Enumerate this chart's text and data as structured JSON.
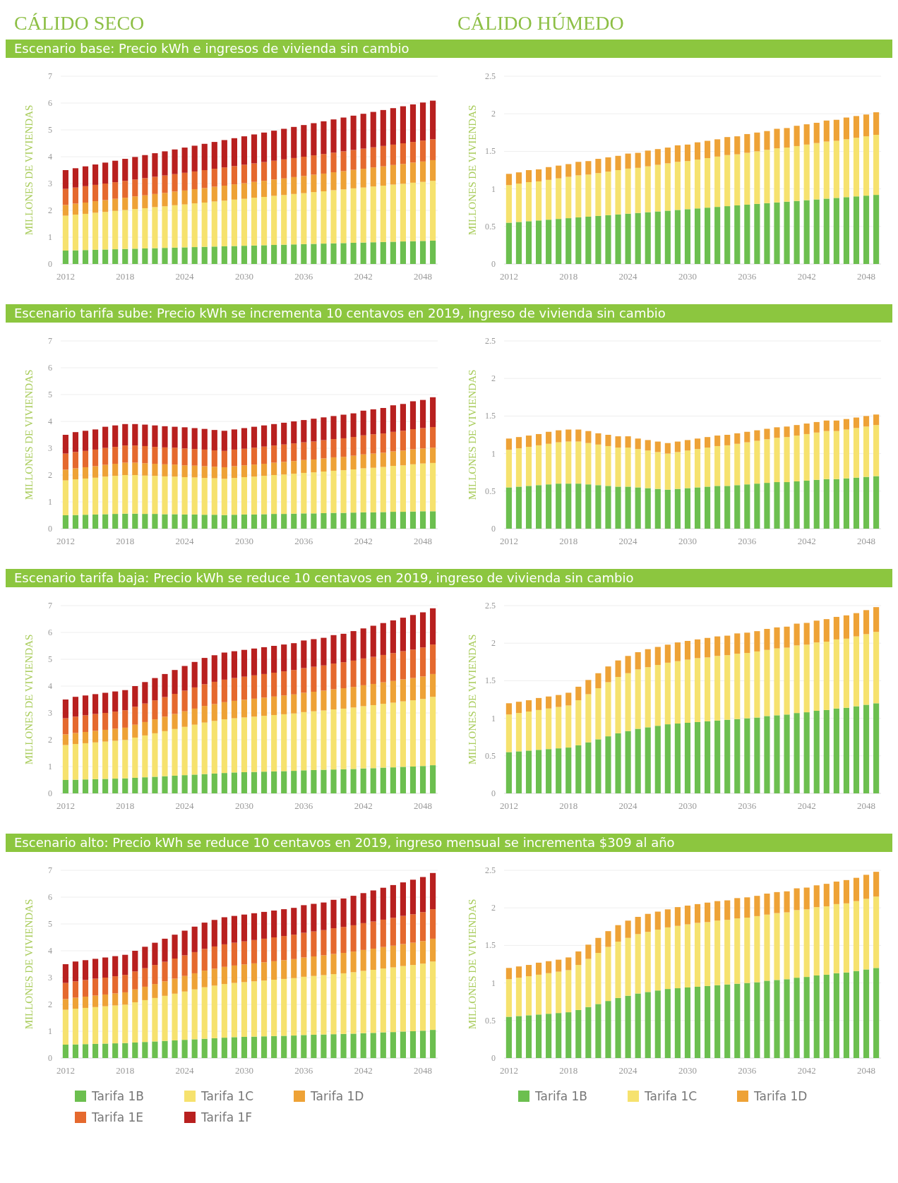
{
  "chart_data": [
    {
      "type": "bar",
      "stacked": true,
      "title": "CÁLIDO SECO",
      "subtitle": "Escenario base: Precio kWh e ingresos de vivienda sin cambio",
      "ylabel": "MILLONES DE VIVIENDAS",
      "categories": [
        "2012",
        null,
        null,
        null,
        null,
        null,
        "2018",
        null,
        null,
        null,
        null,
        null,
        "2024",
        null,
        null,
        null,
        null,
        null,
        "2030",
        null,
        null,
        null,
        null,
        null,
        "2036",
        null,
        null,
        null,
        null,
        null,
        "2042",
        null,
        null,
        null,
        null,
        null,
        "2048",
        null
      ],
      "ylim": [
        0,
        7
      ],
      "yticks": [
        0,
        1,
        2,
        3,
        4,
        5,
        6,
        7
      ],
      "grid": "y",
      "legend": false,
      "series": [
        {
          "color": "#6cbf4f",
          "values": [
            0.5,
            0.51,
            0.52,
            0.53,
            0.54,
            0.55,
            0.56,
            0.57,
            0.58,
            0.59,
            0.6,
            0.61,
            0.62,
            0.63,
            0.64,
            0.65,
            0.66,
            0.67,
            0.68,
            0.69,
            0.7,
            0.71,
            0.72,
            0.73,
            0.74,
            0.75,
            0.76,
            0.77,
            0.78,
            0.79,
            0.8,
            0.81,
            0.82,
            0.83,
            0.84,
            0.85,
            0.86,
            0.87
          ]
        },
        {
          "color": "#f6e26e",
          "values": [
            1.3,
            1.33,
            1.35,
            1.38,
            1.4,
            1.43,
            1.45,
            1.48,
            1.5,
            1.53,
            1.55,
            1.58,
            1.6,
            1.63,
            1.65,
            1.68,
            1.7,
            1.73,
            1.75,
            1.78,
            1.8,
            1.83,
            1.85,
            1.88,
            1.9,
            1.93,
            1.95,
            1.98,
            2,
            2.03,
            2.05,
            2.08,
            2.1,
            2.13,
            2.15,
            2.18,
            2.2,
            2.23
          ]
        },
        {
          "color": "#eea236",
          "values": [
            0.4,
            0.41,
            0.42,
            0.43,
            0.44,
            0.45,
            0.46,
            0.47,
            0.48,
            0.49,
            0.5,
            0.51,
            0.52,
            0.53,
            0.54,
            0.55,
            0.56,
            0.57,
            0.58,
            0.59,
            0.6,
            0.61,
            0.62,
            0.63,
            0.64,
            0.65,
            0.66,
            0.67,
            0.68,
            0.69,
            0.7,
            0.71,
            0.72,
            0.73,
            0.74,
            0.75,
            0.76,
            0.77
          ]
        },
        {
          "color": "#e5692e",
          "values": [
            0.6,
            0.6,
            0.61,
            0.61,
            0.62,
            0.62,
            0.63,
            0.63,
            0.64,
            0.64,
            0.65,
            0.65,
            0.66,
            0.66,
            0.67,
            0.67,
            0.68,
            0.68,
            0.69,
            0.69,
            0.7,
            0.7,
            0.71,
            0.71,
            0.72,
            0.72,
            0.73,
            0.73,
            0.74,
            0.74,
            0.75,
            0.75,
            0.76,
            0.76,
            0.77,
            0.77,
            0.78,
            0.78
          ]
        },
        {
          "color": "#b8201f",
          "values": [
            0.7,
            0.72,
            0.74,
            0.76,
            0.78,
            0.8,
            0.82,
            0.84,
            0.86,
            0.88,
            0.9,
            0.92,
            0.94,
            0.96,
            0.98,
            1,
            1.02,
            1.04,
            1.06,
            1.08,
            1.1,
            1.12,
            1.14,
            1.16,
            1.18,
            1.2,
            1.22,
            1.24,
            1.26,
            1.28,
            1.3,
            1.32,
            1.34,
            1.36,
            1.38,
            1.4,
            1.42,
            1.44
          ]
        }
      ]
    },
    {
      "type": "bar",
      "stacked": true,
      "title": "CÁLIDO HÚMEDO",
      "ylabel": "MILLONES DE VIVIENDAS",
      "categories": [
        "2012",
        null,
        null,
        null,
        null,
        null,
        "2018",
        null,
        null,
        null,
        null,
        null,
        "2024",
        null,
        null,
        null,
        null,
        null,
        "2030",
        null,
        null,
        null,
        null,
        null,
        "2036",
        null,
        null,
        null,
        null,
        null,
        "2042",
        null,
        null,
        null,
        null,
        null,
        "2048",
        null
      ],
      "ylim": [
        0,
        2.5
      ],
      "yticks": [
        0,
        0.5,
        1,
        1.5,
        2,
        2.5
      ],
      "grid": "y",
      "legend": false,
      "series": [
        {
          "color": "#6cbf4f",
          "values": [
            0.55,
            0.56,
            0.57,
            0.58,
            0.59,
            0.6,
            0.61,
            0.62,
            0.63,
            0.64,
            0.65,
            0.66,
            0.67,
            0.68,
            0.69,
            0.7,
            0.71,
            0.72,
            0.73,
            0.74,
            0.75,
            0.76,
            0.77,
            0.78,
            0.79,
            0.8,
            0.81,
            0.82,
            0.83,
            0.84,
            0.85,
            0.86,
            0.87,
            0.88,
            0.89,
            0.9,
            0.91,
            0.92
          ]
        },
        {
          "color": "#f6e26e",
          "values": [
            0.5,
            0.51,
            0.52,
            0.52,
            0.53,
            0.54,
            0.55,
            0.56,
            0.56,
            0.57,
            0.58,
            0.59,
            0.6,
            0.6,
            0.61,
            0.62,
            0.63,
            0.64,
            0.64,
            0.65,
            0.66,
            0.67,
            0.68,
            0.68,
            0.69,
            0.7,
            0.71,
            0.72,
            0.72,
            0.73,
            0.74,
            0.75,
            0.76,
            0.76,
            0.77,
            0.78,
            0.79,
            0.8
          ]
        },
        {
          "color": "#eea236",
          "values": [
            0.15,
            0.15,
            0.16,
            0.16,
            0.17,
            0.17,
            0.17,
            0.18,
            0.18,
            0.19,
            0.19,
            0.19,
            0.2,
            0.2,
            0.21,
            0.21,
            0.21,
            0.22,
            0.22,
            0.23,
            0.23,
            0.23,
            0.24,
            0.24,
            0.25,
            0.25,
            0.25,
            0.26,
            0.26,
            0.27,
            0.27,
            0.27,
            0.28,
            0.28,
            0.29,
            0.29,
            0.29,
            0.3
          ]
        }
      ]
    },
    {
      "type": "bar",
      "stacked": true,
      "subtitle": "Escenario tarifa sube: Precio kWh se incrementa 10 centavos en 2019, ingreso de vivienda sin cambio",
      "ylabel": "MILLONES DE VIVIENDAS",
      "categories": [
        "2012",
        null,
        null,
        null,
        null,
        null,
        "2018",
        null,
        null,
        null,
        null,
        null,
        "2024",
        null,
        null,
        null,
        null,
        null,
        "2030",
        null,
        null,
        null,
        null,
        null,
        "2036",
        null,
        null,
        null,
        null,
        null,
        "2042",
        null,
        null,
        null,
        null,
        null,
        "2048",
        null
      ],
      "ylim": [
        0,
        7
      ],
      "yticks": [
        0,
        1,
        2,
        3,
        4,
        5,
        6,
        7
      ],
      "grid": "y",
      "legend": false,
      "series": [
        {
          "color": "#6cbf4f",
          "values": [
            0.5,
            0.51,
            0.52,
            0.53,
            0.54,
            0.55,
            0.56,
            0.56,
            0.55,
            0.55,
            0.54,
            0.54,
            0.53,
            0.53,
            0.52,
            0.52,
            0.51,
            0.52,
            0.53,
            0.53,
            0.54,
            0.55,
            0.55,
            0.56,
            0.57,
            0.57,
            0.58,
            0.59,
            0.59,
            0.6,
            0.61,
            0.61,
            0.62,
            0.63,
            0.63,
            0.64,
            0.65,
            0.65
          ]
        },
        {
          "color": "#f6e26e",
          "values": [
            1.3,
            1.33,
            1.35,
            1.37,
            1.4,
            1.42,
            1.44,
            1.44,
            1.43,
            1.42,
            1.41,
            1.4,
            1.39,
            1.38,
            1.37,
            1.36,
            1.35,
            1.37,
            1.39,
            1.41,
            1.43,
            1.45,
            1.47,
            1.49,
            1.51,
            1.53,
            1.55,
            1.57,
            1.59,
            1.61,
            1.64,
            1.66,
            1.68,
            1.71,
            1.73,
            1.76,
            1.78,
            1.8
          ]
        },
        {
          "color": "#eea236",
          "values": [
            0.4,
            0.41,
            0.42,
            0.43,
            0.44,
            0.45,
            0.46,
            0.46,
            0.46,
            0.45,
            0.45,
            0.45,
            0.44,
            0.44,
            0.44,
            0.43,
            0.43,
            0.44,
            0.44,
            0.45,
            0.45,
            0.46,
            0.47,
            0.47,
            0.48,
            0.48,
            0.49,
            0.5,
            0.5,
            0.51,
            0.52,
            0.53,
            0.53,
            0.54,
            0.55,
            0.56,
            0.56,
            0.57
          ]
        },
        {
          "color": "#e5692e",
          "values": [
            0.6,
            0.61,
            0.61,
            0.62,
            0.63,
            0.63,
            0.64,
            0.64,
            0.64,
            0.63,
            0.63,
            0.63,
            0.63,
            0.62,
            0.62,
            0.61,
            0.61,
            0.62,
            0.62,
            0.63,
            0.64,
            0.64,
            0.65,
            0.66,
            0.66,
            0.67,
            0.68,
            0.68,
            0.69,
            0.7,
            0.71,
            0.72,
            0.72,
            0.73,
            0.74,
            0.75,
            0.76,
            0.77
          ]
        },
        {
          "color": "#b8201f",
          "values": [
            0.7,
            0.74,
            0.75,
            0.75,
            0.79,
            0.8,
            0.8,
            0.8,
            0.8,
            0.8,
            0.79,
            0.78,
            0.79,
            0.78,
            0.77,
            0.76,
            0.75,
            0.75,
            0.77,
            0.78,
            0.79,
            0.8,
            0.81,
            0.82,
            0.83,
            0.85,
            0.85,
            0.86,
            0.88,
            0.88,
            0.92,
            0.93,
            0.95,
            0.99,
            1,
            1.04,
            1.05,
            1.11
          ]
        }
      ]
    },
    {
      "type": "bar",
      "stacked": true,
      "ylabel": "MILLONES DE VIVIENDAS",
      "categories": [
        "2012",
        null,
        null,
        null,
        null,
        null,
        "2018",
        null,
        null,
        null,
        null,
        null,
        "2024",
        null,
        null,
        null,
        null,
        null,
        "2030",
        null,
        null,
        null,
        null,
        null,
        "2036",
        null,
        null,
        null,
        null,
        null,
        "2042",
        null,
        null,
        null,
        null,
        null,
        "2048",
        null
      ],
      "ylim": [
        0,
        2.5
      ],
      "yticks": [
        0,
        0.5,
        1,
        1.5,
        2,
        2.5
      ],
      "grid": "y",
      "legend": false,
      "series": [
        {
          "color": "#6cbf4f",
          "values": [
            0.55,
            0.56,
            0.57,
            0.58,
            0.59,
            0.6,
            0.6,
            0.6,
            0.59,
            0.58,
            0.57,
            0.56,
            0.56,
            0.55,
            0.54,
            0.53,
            0.52,
            0.53,
            0.54,
            0.55,
            0.56,
            0.57,
            0.57,
            0.58,
            0.59,
            0.6,
            0.61,
            0.62,
            0.62,
            0.63,
            0.64,
            0.65,
            0.66,
            0.66,
            0.67,
            0.68,
            0.69,
            0.7
          ]
        },
        {
          "color": "#f6e26e",
          "values": [
            0.5,
            0.51,
            0.52,
            0.53,
            0.54,
            0.55,
            0.56,
            0.56,
            0.55,
            0.54,
            0.53,
            0.52,
            0.52,
            0.51,
            0.5,
            0.49,
            0.48,
            0.49,
            0.5,
            0.51,
            0.52,
            0.53,
            0.54,
            0.55,
            0.56,
            0.57,
            0.58,
            0.59,
            0.6,
            0.61,
            0.62,
            0.63,
            0.64,
            0.64,
            0.65,
            0.66,
            0.67,
            0.68
          ]
        },
        {
          "color": "#eea236",
          "values": [
            0.15,
            0.15,
            0.15,
            0.15,
            0.16,
            0.16,
            0.16,
            0.16,
            0.16,
            0.15,
            0.15,
            0.15,
            0.15,
            0.14,
            0.14,
            0.14,
            0.14,
            0.14,
            0.14,
            0.14,
            0.14,
            0.14,
            0.14,
            0.14,
            0.14,
            0.14,
            0.14,
            0.14,
            0.14,
            0.14,
            0.14,
            0.14,
            0.14,
            0.14,
            0.14,
            0.14,
            0.14,
            0.14
          ]
        }
      ]
    },
    {
      "type": "bar",
      "stacked": true,
      "subtitle": "Escenario tarifa baja: Precio kWh se reduce 10 centavos en 2019, ingreso de vivienda sin cambio",
      "ylabel": "MILLONES DE VIVIENDAS",
      "categories": [
        "2012",
        null,
        null,
        null,
        null,
        null,
        "2018",
        null,
        null,
        null,
        null,
        null,
        "2024",
        null,
        null,
        null,
        null,
        null,
        "2030",
        null,
        null,
        null,
        null,
        null,
        "2036",
        null,
        null,
        null,
        null,
        null,
        "2042",
        null,
        null,
        null,
        null,
        null,
        "2048",
        null
      ],
      "ylim": [
        0,
        7
      ],
      "yticks": [
        0,
        1,
        2,
        3,
        4,
        5,
        6,
        7
      ],
      "grid": "y",
      "legend": false,
      "series": [
        {
          "color": "#6cbf4f",
          "values": [
            0.5,
            0.51,
            0.52,
            0.53,
            0.54,
            0.55,
            0.56,
            0.58,
            0.6,
            0.62,
            0.64,
            0.66,
            0.68,
            0.7,
            0.72,
            0.74,
            0.76,
            0.78,
            0.79,
            0.8,
            0.81,
            0.82,
            0.83,
            0.84,
            0.86,
            0.87,
            0.88,
            0.89,
            0.9,
            0.91,
            0.93,
            0.94,
            0.96,
            0.97,
            0.99,
            1,
            1.02,
            1.05
          ]
        },
        {
          "color": "#f6e26e",
          "values": [
            1.3,
            1.33,
            1.35,
            1.37,
            1.39,
            1.41,
            1.43,
            1.5,
            1.56,
            1.62,
            1.68,
            1.74,
            1.8,
            1.86,
            1.92,
            1.96,
            2,
            2.02,
            2.04,
            2.06,
            2.08,
            2.1,
            2.12,
            2.14,
            2.17,
            2.19,
            2.21,
            2.24,
            2.26,
            2.29,
            2.32,
            2.35,
            2.38,
            2.41,
            2.44,
            2.47,
            2.5,
            2.55
          ]
        },
        {
          "color": "#eea236",
          "values": [
            0.4,
            0.41,
            0.42,
            0.43,
            0.44,
            0.45,
            0.46,
            0.48,
            0.5,
            0.52,
            0.54,
            0.56,
            0.58,
            0.6,
            0.62,
            0.63,
            0.64,
            0.65,
            0.66,
            0.67,
            0.68,
            0.69,
            0.7,
            0.71,
            0.72,
            0.73,
            0.74,
            0.75,
            0.76,
            0.77,
            0.78,
            0.79,
            0.8,
            0.81,
            0.82,
            0.83,
            0.84,
            0.85
          ]
        },
        {
          "color": "#e5692e",
          "values": [
            0.6,
            0.61,
            0.62,
            0.63,
            0.63,
            0.64,
            0.65,
            0.67,
            0.69,
            0.71,
            0.73,
            0.75,
            0.77,
            0.79,
            0.81,
            0.83,
            0.84,
            0.85,
            0.86,
            0.87,
            0.88,
            0.89,
            0.9,
            0.91,
            0.92,
            0.93,
            0.94,
            0.96,
            0.97,
            0.98,
            1,
            1.01,
            1.02,
            1.04,
            1.05,
            1.06,
            1.08,
            1.1
          ]
        },
        {
          "color": "#b8201f",
          "values": [
            0.7,
            0.74,
            0.74,
            0.74,
            0.75,
            0.75,
            0.75,
            0.77,
            0.8,
            0.83,
            0.86,
            0.89,
            0.92,
            0.95,
            0.98,
            0.99,
            1.01,
            1,
            1,
            1,
            1,
            1,
            1,
            1,
            1.03,
            1.03,
            1.03,
            1.06,
            1.06,
            1.1,
            1.12,
            1.16,
            1.19,
            1.22,
            1.25,
            1.29,
            1.31,
            1.35
          ]
        }
      ]
    },
    {
      "type": "bar",
      "stacked": true,
      "ylabel": "MILLONES DE VIVIENDAS",
      "categories": [
        "2012",
        null,
        null,
        null,
        null,
        null,
        "2018",
        null,
        null,
        null,
        null,
        null,
        "2024",
        null,
        null,
        null,
        null,
        null,
        "2030",
        null,
        null,
        null,
        null,
        null,
        "2036",
        null,
        null,
        null,
        null,
        null,
        "2042",
        null,
        null,
        null,
        null,
        null,
        "2048",
        null
      ],
      "ylim": [
        0,
        2.5
      ],
      "yticks": [
        0,
        0.5,
        1,
        1.5,
        2,
        2.5
      ],
      "grid": "y",
      "legend": false,
      "series": [
        {
          "color": "#6cbf4f",
          "values": [
            0.55,
            0.56,
            0.57,
            0.58,
            0.59,
            0.6,
            0.61,
            0.64,
            0.68,
            0.72,
            0.76,
            0.8,
            0.83,
            0.86,
            0.88,
            0.9,
            0.92,
            0.93,
            0.94,
            0.95,
            0.96,
            0.97,
            0.98,
            0.99,
            1,
            1.01,
            1.03,
            1.04,
            1.05,
            1.07,
            1.08,
            1.1,
            1.11,
            1.13,
            1.14,
            1.16,
            1.18,
            1.2
          ]
        },
        {
          "color": "#f6e26e",
          "values": [
            0.5,
            0.51,
            0.52,
            0.53,
            0.54,
            0.55,
            0.56,
            0.6,
            0.64,
            0.68,
            0.72,
            0.75,
            0.77,
            0.79,
            0.8,
            0.81,
            0.82,
            0.83,
            0.84,
            0.85,
            0.85,
            0.86,
            0.86,
            0.87,
            0.87,
            0.88,
            0.88,
            0.89,
            0.89,
            0.9,
            0.9,
            0.91,
            0.91,
            0.92,
            0.92,
            0.93,
            0.94,
            0.95
          ]
        },
        {
          "color": "#eea236",
          "values": [
            0.15,
            0.15,
            0.15,
            0.16,
            0.16,
            0.16,
            0.17,
            0.18,
            0.19,
            0.2,
            0.21,
            0.22,
            0.23,
            0.23,
            0.24,
            0.24,
            0.24,
            0.25,
            0.25,
            0.25,
            0.26,
            0.26,
            0.26,
            0.27,
            0.27,
            0.27,
            0.28,
            0.28,
            0.28,
            0.29,
            0.29,
            0.29,
            0.3,
            0.3,
            0.31,
            0.31,
            0.32,
            0.33
          ]
        }
      ]
    },
    {
      "type": "bar",
      "stacked": true,
      "subtitle": "Escenario alto: Precio kWh se reduce 10 centavos en 2019, ingreso mensual se incrementa $309 al año",
      "ylabel": "MILLONES DE VIVIENDAS",
      "categories": [
        "2012",
        null,
        null,
        null,
        null,
        null,
        "2018",
        null,
        null,
        null,
        null,
        null,
        "2024",
        null,
        null,
        null,
        null,
        null,
        "2030",
        null,
        null,
        null,
        null,
        null,
        "2036",
        null,
        null,
        null,
        null,
        null,
        "2042",
        null,
        null,
        null,
        null,
        null,
        "2048",
        null
      ],
      "ylim": [
        0,
        7
      ],
      "yticks": [
        0,
        1,
        2,
        3,
        4,
        5,
        6,
        7
      ],
      "grid": "y",
      "legend": "bottom",
      "series": [
        {
          "name": "Tarifa 1B",
          "color": "#6cbf4f",
          "values": [
            0.5,
            0.51,
            0.52,
            0.53,
            0.54,
            0.55,
            0.56,
            0.58,
            0.6,
            0.62,
            0.64,
            0.66,
            0.68,
            0.7,
            0.72,
            0.74,
            0.76,
            0.78,
            0.79,
            0.8,
            0.81,
            0.82,
            0.83,
            0.84,
            0.86,
            0.87,
            0.88,
            0.89,
            0.9,
            0.91,
            0.93,
            0.94,
            0.96,
            0.97,
            0.99,
            1,
            1.02,
            1.05
          ]
        },
        {
          "name": "Tarifa 1C",
          "color": "#f6e26e",
          "values": [
            1.3,
            1.33,
            1.35,
            1.37,
            1.39,
            1.41,
            1.43,
            1.5,
            1.56,
            1.62,
            1.68,
            1.74,
            1.8,
            1.86,
            1.92,
            1.96,
            2,
            2.02,
            2.04,
            2.06,
            2.08,
            2.1,
            2.12,
            2.14,
            2.17,
            2.19,
            2.21,
            2.24,
            2.26,
            2.29,
            2.32,
            2.35,
            2.38,
            2.41,
            2.44,
            2.47,
            2.5,
            2.55
          ]
        },
        {
          "name": "Tarifa 1D",
          "color": "#eea236",
          "values": [
            0.4,
            0.41,
            0.42,
            0.43,
            0.44,
            0.45,
            0.46,
            0.48,
            0.5,
            0.52,
            0.54,
            0.56,
            0.58,
            0.6,
            0.62,
            0.63,
            0.64,
            0.65,
            0.66,
            0.67,
            0.68,
            0.69,
            0.7,
            0.71,
            0.72,
            0.73,
            0.74,
            0.75,
            0.76,
            0.77,
            0.78,
            0.79,
            0.8,
            0.81,
            0.82,
            0.83,
            0.84,
            0.85
          ]
        },
        {
          "name": "Tarifa 1E",
          "color": "#e5692e",
          "values": [
            0.6,
            0.61,
            0.62,
            0.63,
            0.63,
            0.64,
            0.65,
            0.67,
            0.69,
            0.71,
            0.73,
            0.75,
            0.77,
            0.79,
            0.81,
            0.83,
            0.84,
            0.85,
            0.86,
            0.87,
            0.88,
            0.89,
            0.9,
            0.91,
            0.92,
            0.93,
            0.94,
            0.96,
            0.97,
            0.98,
            1,
            1.01,
            1.02,
            1.04,
            1.05,
            1.06,
            1.08,
            1.1
          ]
        },
        {
          "name": "Tarifa 1F",
          "color": "#b8201f",
          "values": [
            0.7,
            0.74,
            0.74,
            0.74,
            0.75,
            0.75,
            0.75,
            0.77,
            0.8,
            0.83,
            0.86,
            0.89,
            0.92,
            0.95,
            0.98,
            0.99,
            1.01,
            1,
            1,
            1,
            1,
            1,
            1,
            1,
            1.03,
            1.03,
            1.03,
            1.06,
            1.06,
            1.1,
            1.12,
            1.16,
            1.19,
            1.22,
            1.25,
            1.29,
            1.31,
            1.35
          ]
        }
      ]
    },
    {
      "type": "bar",
      "stacked": true,
      "ylabel": "MILLONES DE VIVIENDAS",
      "categories": [
        "2012",
        null,
        null,
        null,
        null,
        null,
        "2018",
        null,
        null,
        null,
        null,
        null,
        "2024",
        null,
        null,
        null,
        null,
        null,
        "2030",
        null,
        null,
        null,
        null,
        null,
        "2036",
        null,
        null,
        null,
        null,
        null,
        "2042",
        null,
        null,
        null,
        null,
        null,
        "2048",
        null
      ],
      "ylim": [
        0,
        2.5
      ],
      "yticks": [
        0,
        0.5,
        1,
        1.5,
        2,
        2.5
      ],
      "grid": "y",
      "legend": "bottom",
      "series": [
        {
          "name": "Tarifa 1B",
          "color": "#6cbf4f",
          "values": [
            0.55,
            0.56,
            0.57,
            0.58,
            0.59,
            0.6,
            0.61,
            0.64,
            0.68,
            0.72,
            0.76,
            0.8,
            0.83,
            0.86,
            0.88,
            0.9,
            0.92,
            0.93,
            0.94,
            0.95,
            0.96,
            0.97,
            0.98,
            0.99,
            1,
            1.01,
            1.03,
            1.04,
            1.05,
            1.07,
            1.08,
            1.1,
            1.11,
            1.13,
            1.14,
            1.16,
            1.18,
            1.2
          ]
        },
        {
          "name": "Tarifa 1C",
          "color": "#f6e26e",
          "values": [
            0.5,
            0.51,
            0.52,
            0.53,
            0.54,
            0.55,
            0.56,
            0.6,
            0.64,
            0.68,
            0.72,
            0.75,
            0.77,
            0.79,
            0.8,
            0.81,
            0.82,
            0.83,
            0.84,
            0.85,
            0.85,
            0.86,
            0.86,
            0.87,
            0.87,
            0.88,
            0.88,
            0.89,
            0.89,
            0.9,
            0.9,
            0.91,
            0.91,
            0.92,
            0.92,
            0.93,
            0.94,
            0.95
          ]
        },
        {
          "name": "Tarifa 1D",
          "color": "#eea236",
          "values": [
            0.15,
            0.15,
            0.15,
            0.16,
            0.16,
            0.16,
            0.17,
            0.18,
            0.19,
            0.2,
            0.21,
            0.22,
            0.23,
            0.23,
            0.24,
            0.24,
            0.24,
            0.25,
            0.25,
            0.25,
            0.26,
            0.26,
            0.26,
            0.27,
            0.27,
            0.27,
            0.28,
            0.28,
            0.28,
            0.29,
            0.29,
            0.29,
            0.3,
            0.3,
            0.31,
            0.31,
            0.32,
            0.33
          ]
        }
      ]
    }
  ]
}
